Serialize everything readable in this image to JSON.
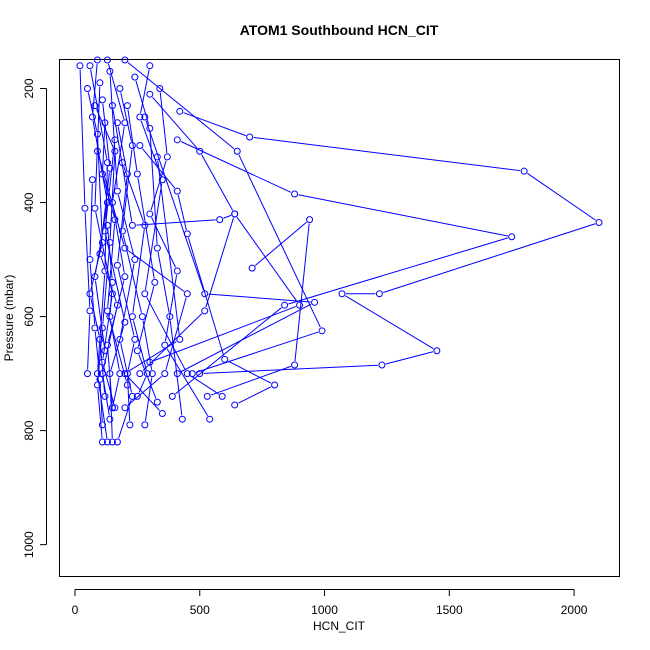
{
  "chart_data": {
    "type": "line",
    "title": "ATOM1 Southbound HCN_CIT",
    "xlabel": "HCN_CIT",
    "ylabel": "Pressure (mbar)",
    "xlim": [
      -60,
      2180
    ],
    "ylim": [
      1055,
      150
    ],
    "y_inverted": true,
    "xticks": [
      0,
      500,
      1000,
      1500,
      2000
    ],
    "yticks": [
      200,
      400,
      600,
      800,
      1000
    ],
    "grid": false,
    "color": "#0000ff",
    "marker": "open-circle",
    "series": [
      {
        "points": [
          [
            420,
            240
          ],
          [
            700,
            285
          ],
          [
            1800,
            345
          ],
          [
            2100,
            435
          ],
          [
            1220,
            560
          ],
          [
            1070,
            560
          ],
          [
            1450,
            660
          ],
          [
            1230,
            685
          ],
          [
            500,
            700
          ]
        ]
      },
      {
        "points": [
          [
            410,
            290
          ],
          [
            880,
            385
          ],
          [
            1750,
            460
          ],
          [
            840,
            580
          ],
          [
            390,
            740
          ]
        ]
      },
      {
        "points": [
          [
            300,
            210
          ],
          [
            500,
            310
          ],
          [
            640,
            420
          ],
          [
            900,
            580
          ],
          [
            300,
            680
          ]
        ]
      },
      {
        "points": [
          [
            200,
            150
          ],
          [
            650,
            310
          ],
          [
            990,
            625
          ],
          [
            470,
            700
          ]
        ]
      },
      {
        "points": [
          [
            710,
            515
          ],
          [
            940,
            430
          ],
          [
            880,
            685
          ],
          [
            530,
            740
          ]
        ]
      },
      {
        "points": [
          [
            280,
            250
          ],
          [
            520,
            560
          ],
          [
            960,
            575
          ],
          [
            410,
            700
          ]
        ]
      },
      {
        "points": [
          [
            260,
            300
          ],
          [
            410,
            380
          ],
          [
            450,
            455
          ],
          [
            600,
            675
          ],
          [
            800,
            720
          ],
          [
            640,
            755
          ]
        ]
      },
      {
        "points": [
          [
            150,
            230
          ],
          [
            230,
            440
          ],
          [
            580,
            430
          ],
          [
            640,
            420
          ],
          [
            520,
            590
          ],
          [
            260,
            700
          ]
        ]
      },
      {
        "points": [
          [
            330,
            320
          ],
          [
            420,
            640
          ],
          [
            200,
            700
          ],
          [
            350,
            770
          ]
        ]
      },
      {
        "points": [
          [
            90,
            310
          ],
          [
            200,
            480
          ],
          [
            450,
            560
          ],
          [
            360,
            700
          ],
          [
            200,
            760
          ]
        ]
      },
      {
        "points": [
          [
            60,
            160
          ],
          [
            130,
            330
          ],
          [
            120,
            520
          ],
          [
            90,
            700
          ],
          [
            130,
            820
          ]
        ]
      },
      {
        "points": [
          [
            100,
            190
          ],
          [
            80,
            410
          ],
          [
            150,
            560
          ],
          [
            110,
            680
          ],
          [
            160,
            760
          ]
        ]
      },
      {
        "points": [
          [
            140,
            170
          ],
          [
            170,
            380
          ],
          [
            240,
            500
          ],
          [
            180,
            640
          ],
          [
            230,
            740
          ],
          [
            170,
            820
          ]
        ]
      },
      {
        "points": [
          [
            180,
            200
          ],
          [
            230,
            300
          ],
          [
            190,
            450
          ],
          [
            270,
            600
          ],
          [
            310,
            700
          ],
          [
            280,
            790
          ]
        ]
      },
      {
        "points": [
          [
            120,
            260
          ],
          [
            110,
            350
          ],
          [
            160,
            430
          ],
          [
            130,
            590
          ],
          [
            210,
            720
          ]
        ]
      },
      {
        "points": [
          [
            240,
            180
          ],
          [
            300,
            270
          ],
          [
            330,
            480
          ],
          [
            380,
            600
          ],
          [
            430,
            780
          ]
        ]
      },
      {
        "points": [
          [
            70,
            360
          ],
          [
            60,
            500
          ],
          [
            80,
            620
          ],
          [
            100,
            710
          ],
          [
            110,
            790
          ]
        ]
      },
      {
        "points": [
          [
            130,
            150
          ],
          [
            200,
            260
          ],
          [
            150,
            400
          ],
          [
            200,
            530
          ],
          [
            130,
            650
          ],
          [
            150,
            760
          ]
        ]
      },
      {
        "points": [
          [
            50,
            200
          ],
          [
            90,
            280
          ],
          [
            110,
            470
          ],
          [
            60,
            560
          ],
          [
            100,
            640
          ],
          [
            120,
            740
          ]
        ]
      },
      {
        "points": [
          [
            210,
            230
          ],
          [
            250,
            350
          ],
          [
            320,
            540
          ],
          [
            250,
            660
          ],
          [
            330,
            750
          ]
        ]
      },
      {
        "points": [
          [
            160,
            290
          ],
          [
            120,
            450
          ],
          [
            200,
            610
          ],
          [
            140,
            700
          ],
          [
            150,
            820
          ]
        ]
      },
      {
        "points": [
          [
            110,
            220
          ],
          [
            140,
            340
          ],
          [
            100,
            490
          ],
          [
            170,
            580
          ],
          [
            110,
            700
          ],
          [
            140,
            780
          ]
        ]
      },
      {
        "points": [
          [
            90,
            150
          ],
          [
            70,
            250
          ],
          [
            130,
            400
          ],
          [
            80,
            530
          ],
          [
            120,
            660
          ]
        ]
      },
      {
        "points": [
          [
            190,
            330
          ],
          [
            280,
            440
          ],
          [
            230,
            600
          ],
          [
            290,
            700
          ],
          [
            250,
            740
          ]
        ]
      },
      {
        "points": [
          [
            340,
            200
          ],
          [
            370,
            320
          ],
          [
            300,
            420
          ],
          [
            410,
            520
          ],
          [
            360,
            650
          ],
          [
            540,
            780
          ]
        ]
      },
      {
        "points": [
          [
            20,
            160
          ],
          [
            40,
            410
          ],
          [
            60,
            590
          ],
          [
            50,
            700
          ]
        ]
      },
      {
        "points": [
          [
            80,
            230
          ],
          [
            160,
            310
          ],
          [
            140,
            470
          ],
          [
            110,
            620
          ],
          [
            90,
            720
          ],
          [
            110,
            820
          ]
        ]
      },
      {
        "points": [
          [
            300,
            160
          ],
          [
            260,
            250
          ],
          [
            350,
            360
          ],
          [
            280,
            560
          ],
          [
            450,
            700
          ],
          [
            590,
            740
          ]
        ]
      },
      {
        "points": [
          [
            170,
            260
          ],
          [
            210,
            350
          ],
          [
            170,
            510
          ],
          [
            240,
            640
          ],
          [
            210,
            700
          ],
          [
            220,
            790
          ]
        ]
      },
      {
        "points": [
          [
            130,
            440
          ],
          [
            150,
            540
          ],
          [
            140,
            600
          ],
          [
            180,
            700
          ],
          [
            150,
            760
          ]
        ]
      }
    ]
  }
}
